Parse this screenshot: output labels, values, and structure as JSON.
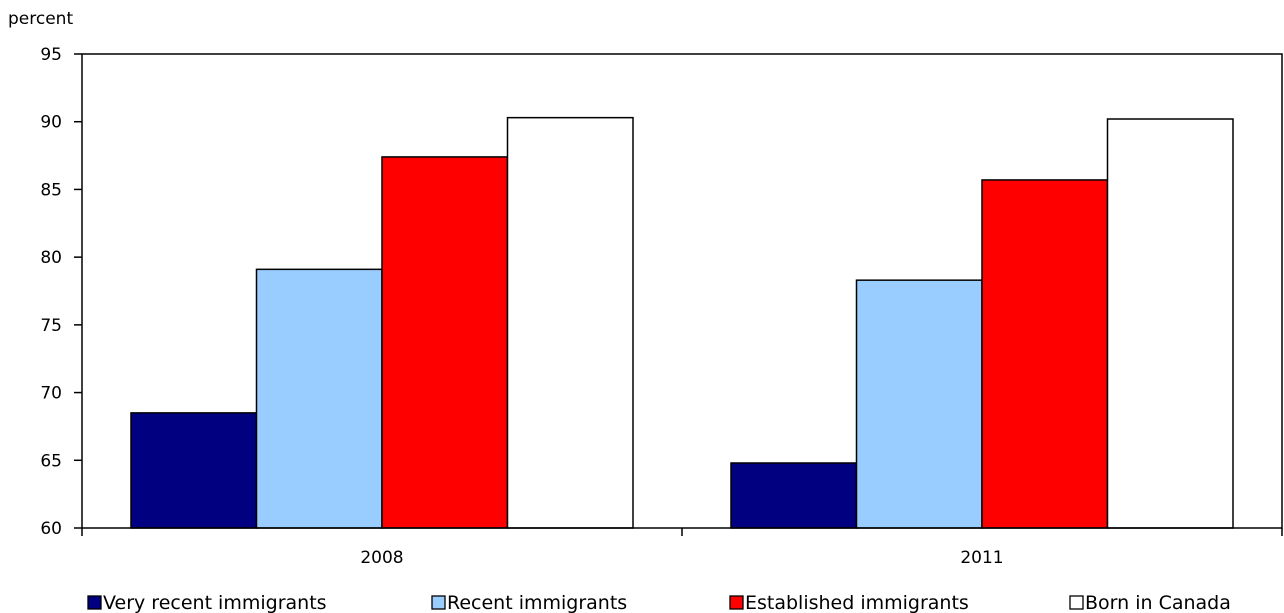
{
  "chart_data": {
    "type": "bar",
    "ylabel": "percent",
    "ylim": [
      60,
      95
    ],
    "yticks": [
      60,
      65,
      70,
      75,
      80,
      85,
      90,
      95
    ],
    "categories": [
      "2008",
      "2011"
    ],
    "legend_position": "bottom",
    "grid": false,
    "series": [
      {
        "name": "Very recent immigrants",
        "color": "#000080",
        "values": [
          68.5,
          64.8
        ]
      },
      {
        "name": "Recent immigrants",
        "color": "#99ccff",
        "values": [
          79.1,
          78.3
        ]
      },
      {
        "name": "Established immigrants",
        "color": "#ff0000",
        "values": [
          87.4,
          85.7
        ]
      },
      {
        "name": "Born in Canada",
        "color": "#ffffff",
        "values": [
          90.3,
          90.2
        ]
      }
    ]
  }
}
